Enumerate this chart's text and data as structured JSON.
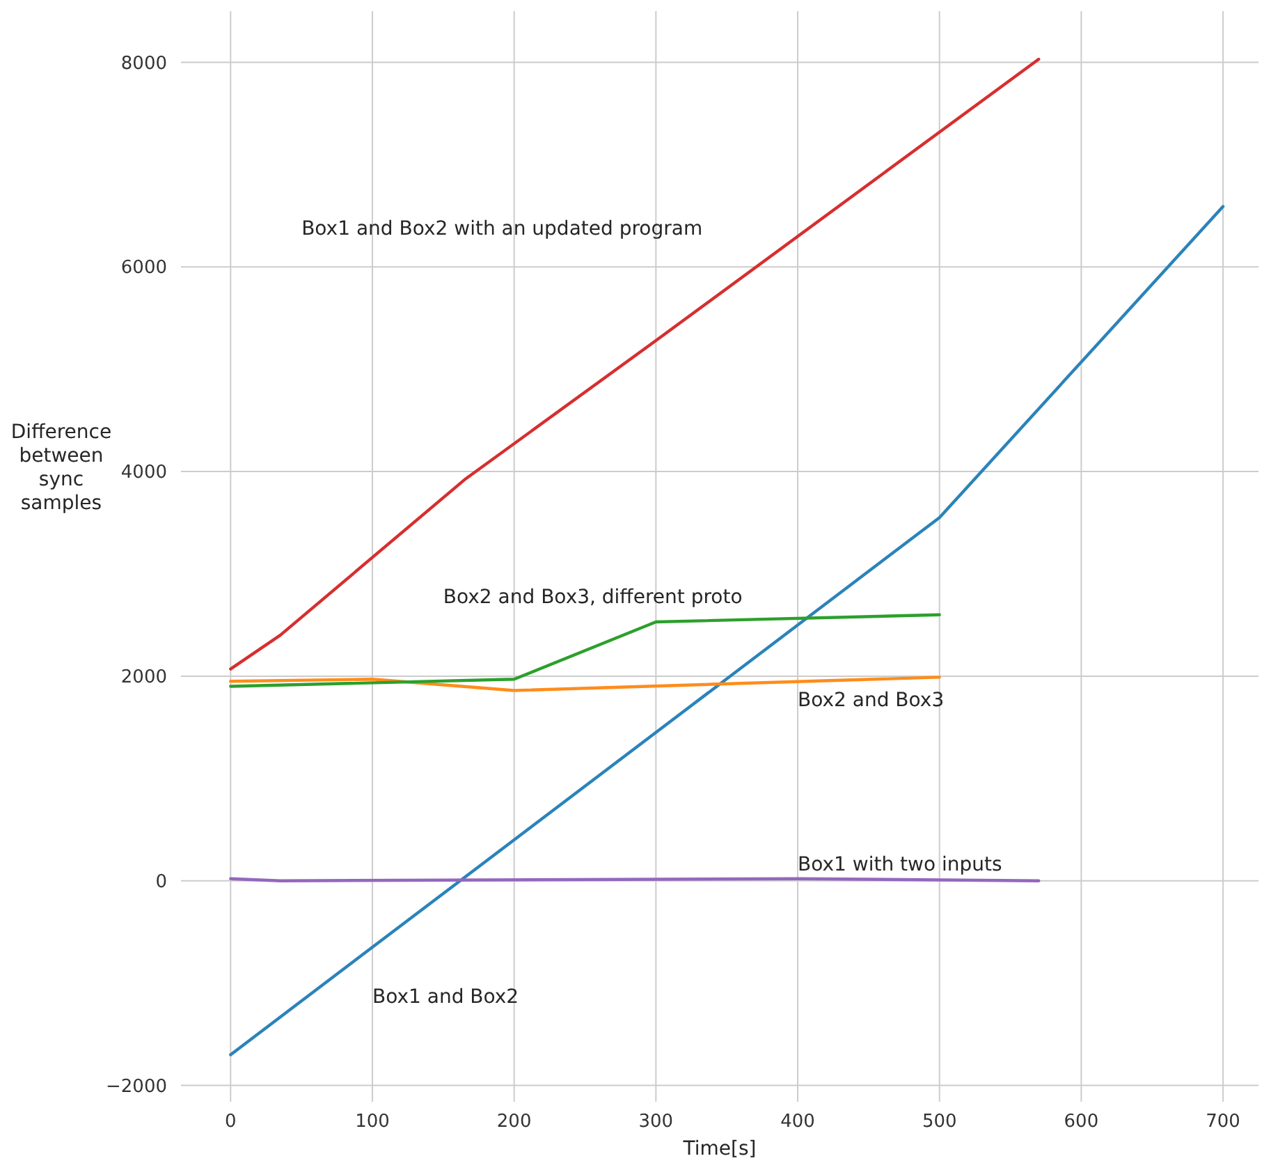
{
  "chart_data": {
    "type": "line",
    "xlabel": "Time[s]",
    "ylabel": "Difference\nbetween\nsync\nsamples",
    "xlim": [
      -35,
      725
    ],
    "ylim": [
      -2160,
      8500
    ],
    "xticks": [
      0,
      100,
      200,
      300,
      400,
      500,
      600,
      700
    ],
    "yticks": [
      {
        "value": -2000,
        "label": "−2000"
      },
      0,
      2000,
      4000,
      6000,
      8000
    ],
    "grid": true,
    "marker": "none",
    "line_style": "solid",
    "series": [
      {
        "name": "Box1 and Box2",
        "color": "#2b83ba",
        "x": [
          0,
          500,
          700
        ],
        "values": [
          -1700,
          3550,
          6590
        ]
      },
      {
        "name": "Box2 and Box3",
        "color": "#ff8c1a",
        "x": [
          0,
          100,
          200,
          500
        ],
        "values": [
          1950,
          1970,
          1860,
          1990
        ]
      },
      {
        "name": "Box2 and Box3, different proto",
        "color": "#2ca02c",
        "x": [
          0,
          200,
          300,
          500
        ],
        "values": [
          1900,
          1970,
          2530,
          2600
        ]
      },
      {
        "name": "Box1 and Box2 with an updated program",
        "color": "#d62f2f",
        "x": [
          0,
          35,
          165,
          300,
          570
        ],
        "values": [
          2070,
          2400,
          3920,
          5280,
          8030
        ]
      },
      {
        "name": "Box1 with two inputs",
        "color": "#9467bd",
        "x": [
          0,
          35,
          400,
          570
        ],
        "values": [
          20,
          0,
          20,
          0
        ]
      }
    ]
  }
}
